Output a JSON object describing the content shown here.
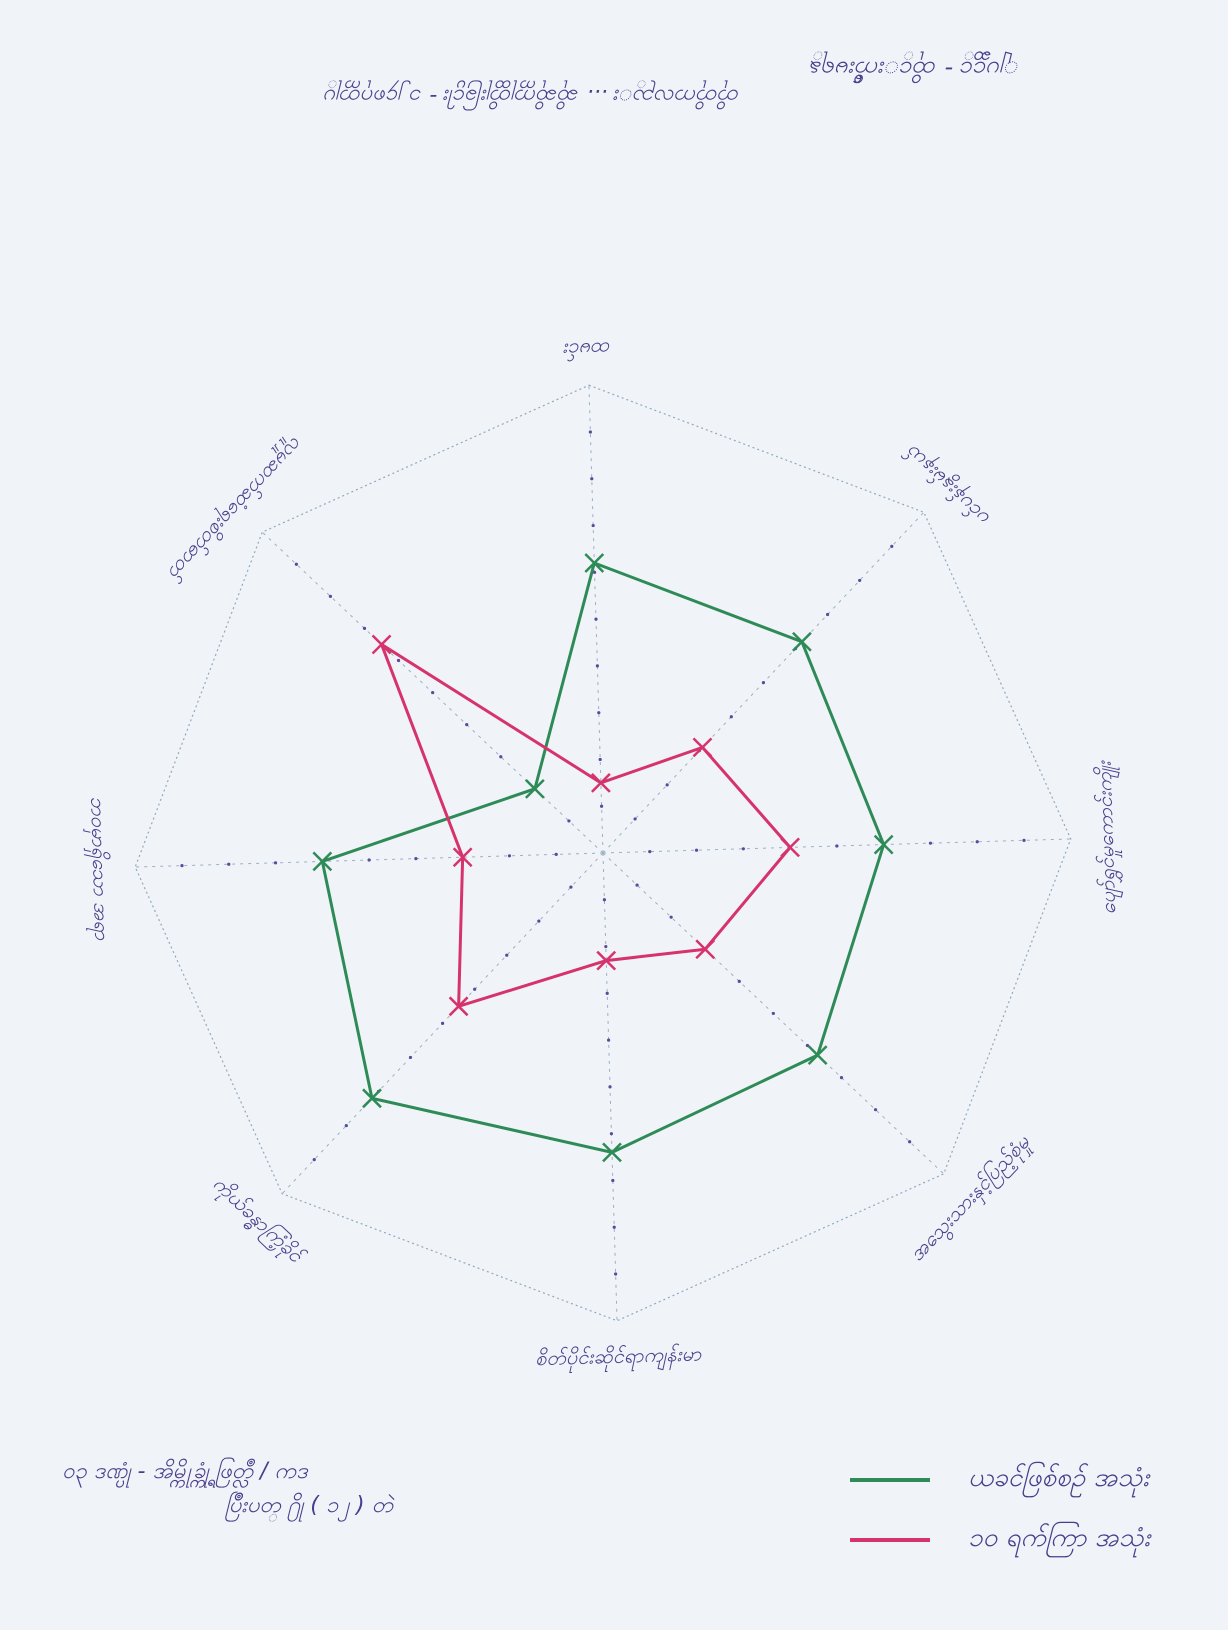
{
  "page": {
    "header_text": "ျပင္ဆင္ - ထိုင္းက်ီးမရန္",
    "header_date": "တိုတိုကလည္း ... ဆိုဆိုက္ကုတ္ထိုးခြင္ပါး - ၁၂၄၈ဂုတ္ကုပ္",
    "footnote_line1": "၀၃ ဒဏ္ပုံ - အိမ္ကိုခ္က္ရုံ ဖြတ္လဳ / ကဒ",
    "footnote_line2": "ပြိဳးပတ္ ႐ို ( ၁၂ ) တဲ"
  },
  "chart_data": {
    "type": "radar",
    "title": "",
    "axes": [
      "ထမင်း",
      "ပင်ပန်းနွမ်းနယ်",
      "ပျော်ရွှင်မှုကောင်းကျိုး",
      "အသွေးသားနှင့်ပြည့်စုံမှု",
      "စိတ်ပိုင်းဆိုင်ရာကျန်းမာ",
      "ကိုယ်ခန္ဓာကြံ့ခိုင်",
      "ဘဝမှာရှိသော အရာ",
      "လူမှုဆက်ဆံရေးစိတ်ဓာတ်"
    ],
    "range": [
      0,
      10
    ],
    "series": [
      {
        "name": "ယခင်ဖြစ်စဉ် အသုံး",
        "color": "#2e8b57",
        "values": [
          6.2,
          6.2,
          6.0,
          6.3,
          6.4,
          7.2,
          6.0,
          2.0
        ]
      },
      {
        "name": "၁၀ ရက်ကြာ အသုံး",
        "color": "#d6336c",
        "values": [
          1.5,
          3.1,
          4.0,
          3.0,
          2.3,
          4.5,
          3.0,
          6.5
        ]
      }
    ],
    "legend_position": "bottom-right"
  }
}
